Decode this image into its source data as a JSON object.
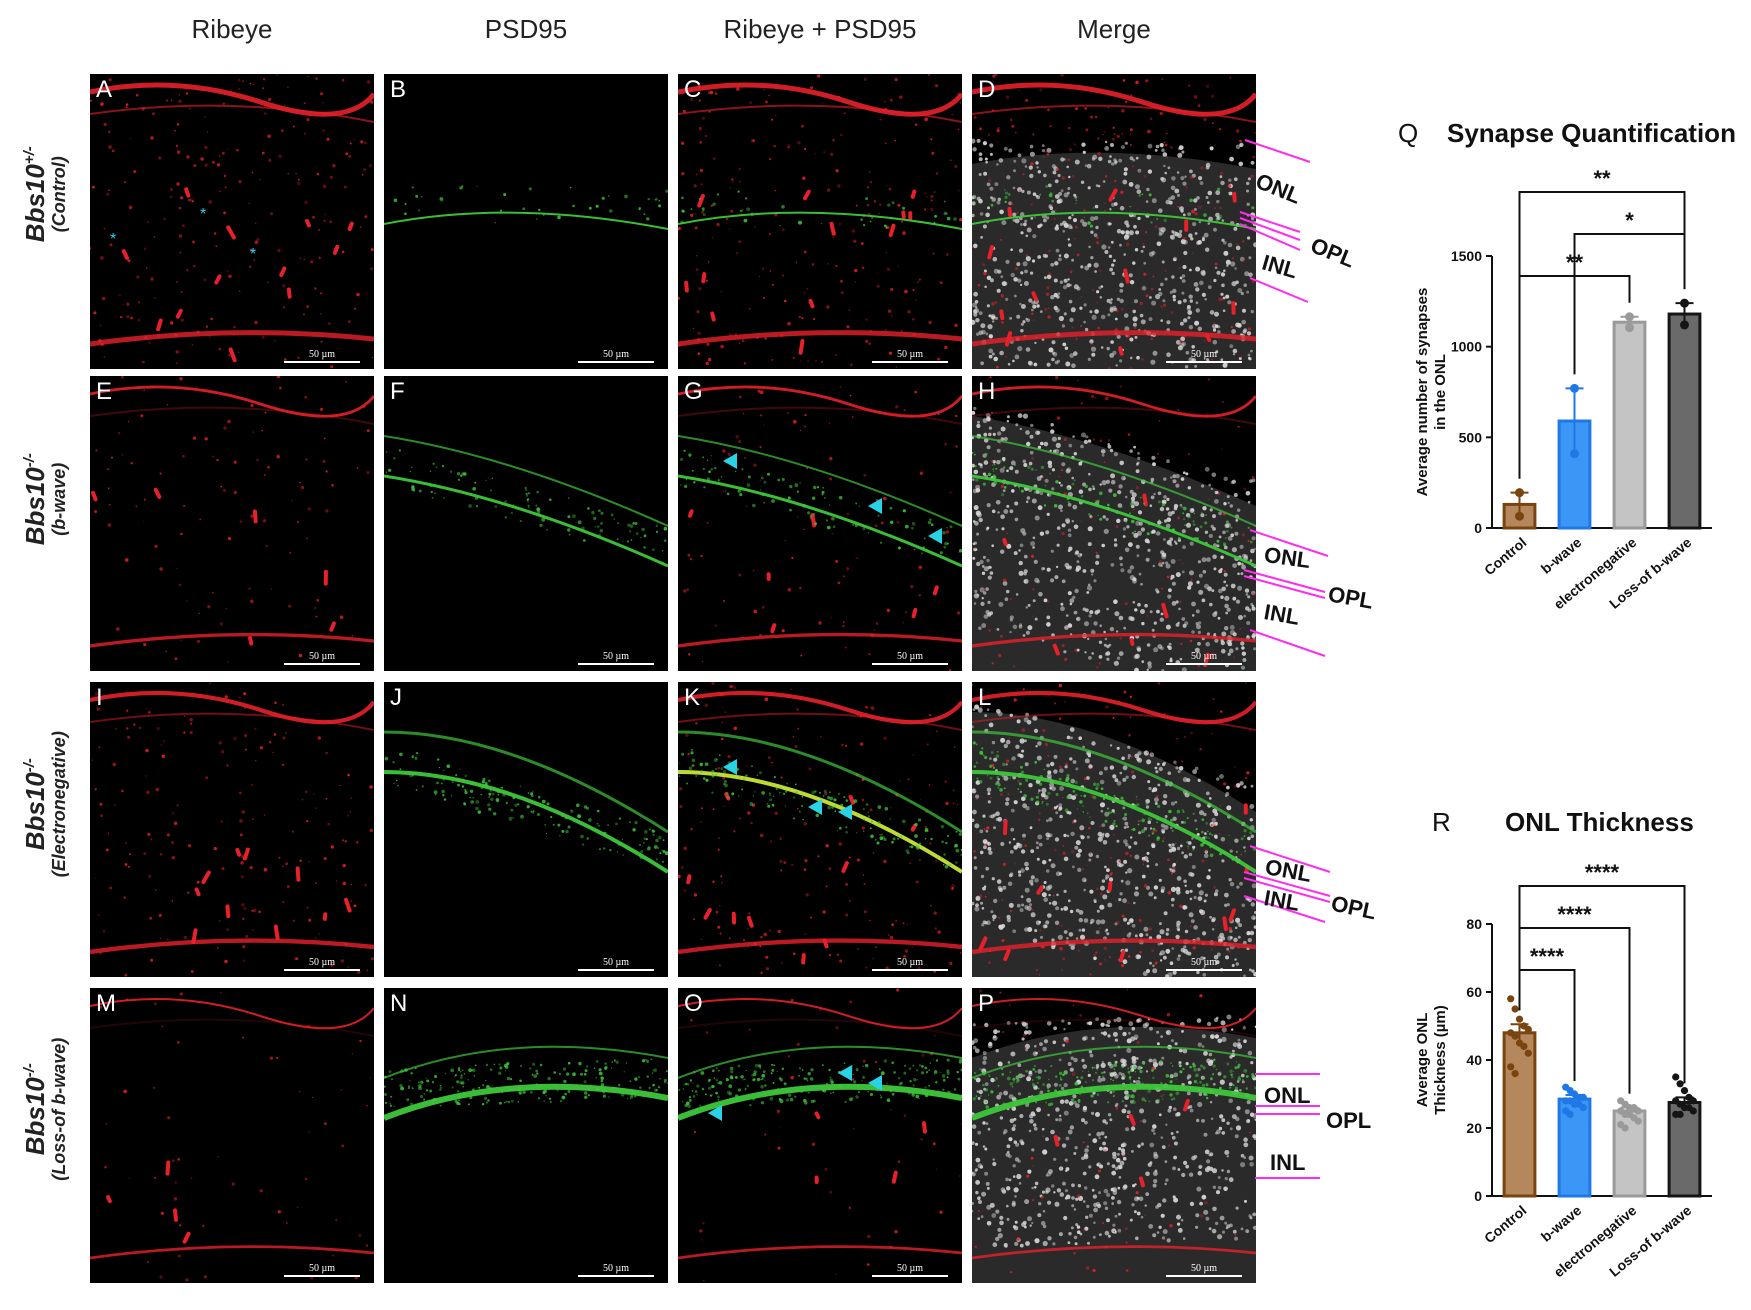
{
  "columns": [
    "Ribeye",
    "PSD95",
    "Ribeye + PSD95",
    "Merge"
  ],
  "rows": [
    {
      "genotype": "Bbs10",
      "sup": "+/-",
      "subtitle": "(Control)"
    },
    {
      "genotype": "Bbs10",
      "sup": "-/-",
      "subtitle": "(b-wave)"
    },
    {
      "genotype": "Bbs10",
      "sup": "-/-",
      "subtitle": "(Electronegative)"
    },
    {
      "genotype": "Bbs10",
      "sup": "-/-",
      "subtitle": "(Loss-of b-wave)"
    }
  ],
  "panel_letters": [
    "A",
    "B",
    "C",
    "D",
    "E",
    "F",
    "G",
    "H",
    "I",
    "J",
    "K",
    "L",
    "M",
    "N",
    "O",
    "P"
  ],
  "scale_bar_text": "50 µm",
  "layer_labels": [
    "ONL",
    "OPL",
    "INL"
  ],
  "colors": {
    "ribeye": "#e8202a",
    "psd95": "#3ec83a",
    "nuclei": "#d8d8d8",
    "arrowhead": "#29d3e6",
    "layer_line": "#ff2cf0"
  },
  "chart_data": [
    {
      "letter": "Q",
      "type": "bar",
      "title": "Synapse Quantification",
      "ylabel_lines": [
        "Average number of synapses",
        "in the ONL"
      ],
      "categories": [
        "Control",
        "b-wave",
        "electronegative",
        "Loss-of b-wave"
      ],
      "values": [
        130,
        590,
        1135,
        1180
      ],
      "errors": [
        65,
        180,
        30,
        60
      ],
      "points": [
        [
          195,
          65
        ],
        [
          770,
          410
        ],
        [
          1165,
          1105
        ],
        [
          1240,
          1120
        ]
      ],
      "colors": [
        "#b5875c",
        "#3c96f5",
        "#c4c4c4",
        "#6a6a6a"
      ],
      "point_colors": [
        "#7a4410",
        "#1f78e6",
        "#9a9a9a",
        "#151515"
      ],
      "ylim": [
        0,
        1500
      ],
      "yticks": [
        0,
        500,
        1000,
        1500
      ],
      "significance": [
        {
          "from": 0,
          "to": 3,
          "label": "**"
        },
        {
          "from": 1,
          "to": 3,
          "label": "*"
        },
        {
          "from": 0,
          "to": 2,
          "label": "**"
        }
      ]
    },
    {
      "letter": "R",
      "type": "bar",
      "title": "ONL Thickness",
      "ylabel_lines": [
        "Average ONL",
        "Thickness (µm)"
      ],
      "categories": [
        "Control",
        "b-wave",
        "electronegative",
        "Loss-of b-wave"
      ],
      "values": [
        48,
        28.5,
        25,
        27.5
      ],
      "errors": [
        2.5,
        1.2,
        1.0,
        1.5
      ],
      "points": [
        [
          58,
          55,
          52,
          50,
          49,
          48,
          47,
          45,
          44,
          42,
          38,
          36
        ],
        [
          32,
          31,
          30,
          29,
          29,
          28,
          28,
          27,
          27,
          26,
          25,
          24
        ],
        [
          28,
          27,
          26,
          26,
          25,
          25,
          24,
          24,
          23,
          22,
          21,
          20
        ],
        [
          35,
          33,
          31,
          29,
          28,
          28,
          27,
          26,
          26,
          25,
          24,
          24
        ]
      ],
      "colors": [
        "#b5875c",
        "#3c96f5",
        "#c4c4c4",
        "#6a6a6a"
      ],
      "point_colors": [
        "#7a4410",
        "#1f78e6",
        "#9a9a9a",
        "#151515"
      ],
      "ylim": [
        0,
        80
      ],
      "yticks": [
        0,
        20,
        40,
        60,
        80
      ],
      "significance": [
        {
          "from": 0,
          "to": 3,
          "label": "****"
        },
        {
          "from": 0,
          "to": 2,
          "label": "****"
        },
        {
          "from": 0,
          "to": 1,
          "label": "****"
        }
      ]
    }
  ]
}
